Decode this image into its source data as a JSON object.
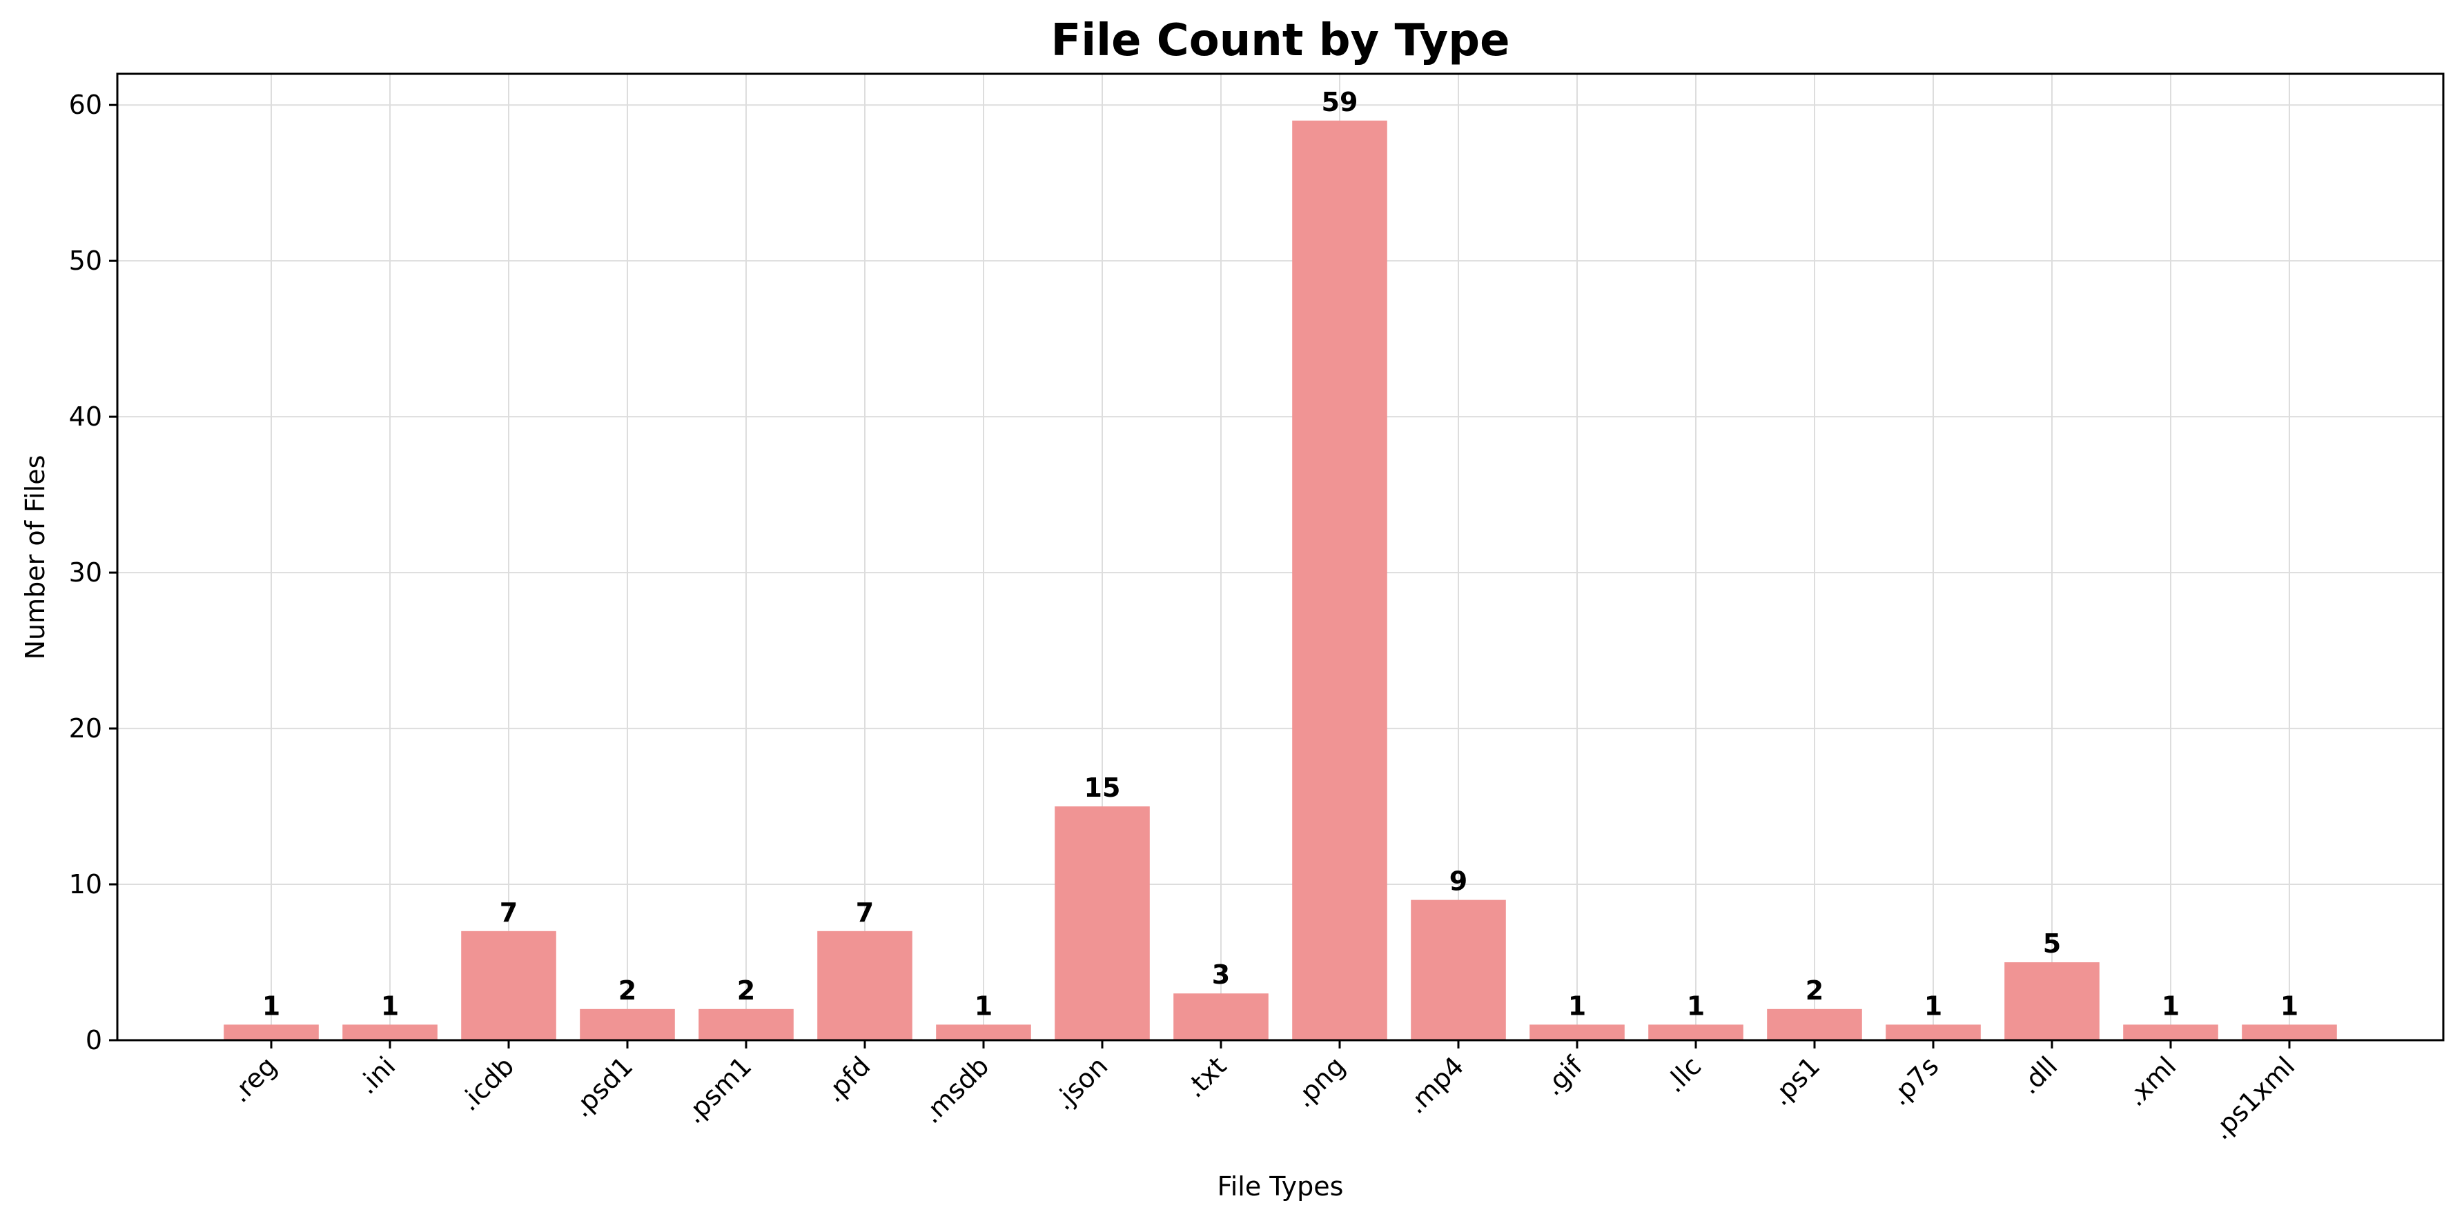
{
  "chart_data": {
    "type": "bar",
    "title": "File Count by Type",
    "xlabel": "File Types",
    "ylabel": "Number of Files",
    "categories": [
      ".reg",
      ".ini",
      ".icdb",
      ".psd1",
      ".psm1",
      ".pfd",
      ".msdb",
      ".json",
      ".txt",
      ".png",
      ".mp4",
      ".gif",
      ".llc",
      ".ps1",
      ".p7s",
      ".dll",
      ".xml",
      ".ps1xml"
    ],
    "values": [
      1,
      1,
      7,
      2,
      2,
      7,
      1,
      15,
      3,
      59,
      9,
      1,
      1,
      2,
      1,
      5,
      1,
      1
    ],
    "ylim": [
      0,
      62
    ],
    "yticks": [
      0,
      10,
      20,
      30,
      40,
      50,
      60
    ],
    "grid": true,
    "legend": "none",
    "colors": {
      "bar": "#f09494",
      "text": "#000000",
      "grid": "#dddddd"
    }
  }
}
